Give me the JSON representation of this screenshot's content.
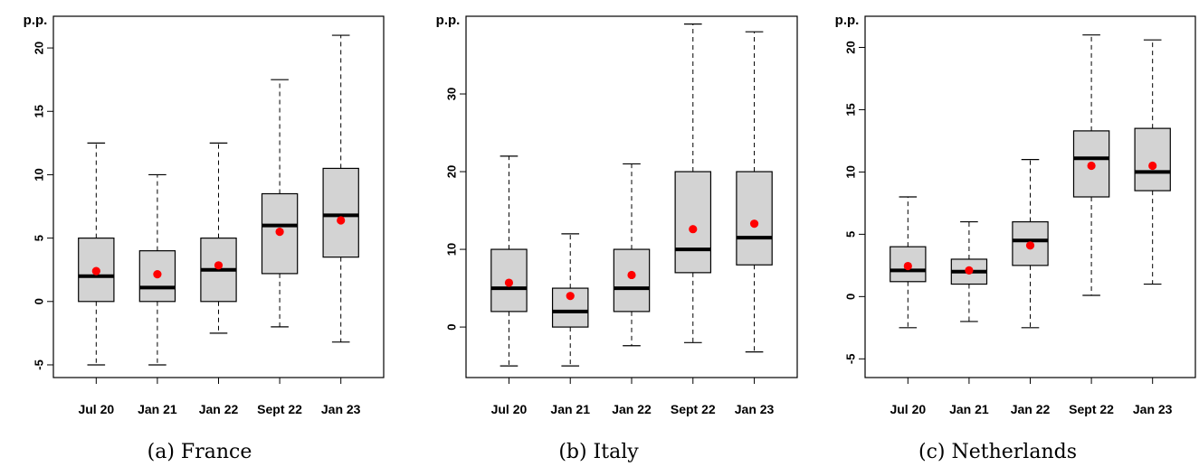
{
  "units_label": "p.p.",
  "captions": [
    "(a) France",
    "(b) Italy",
    "(c) Netherlands"
  ],
  "colors": {
    "box_fill": "#d3d3d3",
    "median": "#000000",
    "mean_point": "#ff0000",
    "frame": "#000000"
  },
  "chart_data": [
    {
      "type": "boxplot",
      "ylabel": "p.p.",
      "categories": [
        "Jul 20",
        "Jan 21",
        "Jan 22",
        "Sept 22",
        "Jan 23"
      ],
      "yticks": [
        -5,
        0,
        5,
        10,
        15,
        20
      ],
      "ylim": [
        -6,
        22.5
      ],
      "boxes": [
        {
          "whisker_low": -5,
          "q1": 0,
          "median": 2,
          "q3": 5,
          "whisker_high": 12.5,
          "mean": 2.4
        },
        {
          "whisker_low": -5,
          "q1": 0,
          "median": 1.1,
          "q3": 4,
          "whisker_high": 10,
          "mean": 2.15
        },
        {
          "whisker_low": -2.5,
          "q1": 0,
          "median": 2.5,
          "q3": 5,
          "whisker_high": 12.5,
          "mean": 2.85
        },
        {
          "whisker_low": -2,
          "q1": 2.2,
          "median": 6,
          "q3": 8.5,
          "whisker_high": 17.5,
          "mean": 5.5
        },
        {
          "whisker_low": -3.2,
          "q1": 3.5,
          "median": 6.8,
          "q3": 10.5,
          "whisker_high": 21,
          "mean": 6.4
        }
      ],
      "grid": false,
      "legend": "none"
    },
    {
      "type": "boxplot",
      "ylabel": "p.p.",
      "categories": [
        "Jul 20",
        "Jan 21",
        "Jan 22",
        "Sept 22",
        "Jan 23"
      ],
      "yticks": [
        0,
        10,
        20,
        30
      ],
      "ylim": [
        -6.5,
        40
      ],
      "boxes": [
        {
          "whisker_low": -5,
          "q1": 2,
          "median": 5,
          "q3": 10,
          "whisker_high": 22,
          "mean": 5.7
        },
        {
          "whisker_low": -5,
          "q1": 0,
          "median": 2,
          "q3": 5,
          "whisker_high": 12,
          "mean": 4
        },
        {
          "whisker_low": -2.4,
          "q1": 2,
          "median": 5,
          "q3": 10,
          "whisker_high": 21,
          "mean": 6.7
        },
        {
          "whisker_low": -2,
          "q1": 7,
          "median": 10,
          "q3": 20,
          "whisker_high": 39,
          "mean": 12.6
        },
        {
          "whisker_low": -3.2,
          "q1": 8,
          "median": 11.5,
          "q3": 20,
          "whisker_high": 38,
          "mean": 13.3
        }
      ],
      "grid": false,
      "legend": "none"
    },
    {
      "type": "boxplot",
      "ylabel": "p.p.",
      "categories": [
        "Jul 20",
        "Jan 21",
        "Jan 22",
        "Sept 22",
        "Jan 23"
      ],
      "yticks": [
        -5,
        0,
        5,
        10,
        15,
        20
      ],
      "ylim": [
        -6.5,
        22.5
      ],
      "boxes": [
        {
          "whisker_low": -2.5,
          "q1": 1.2,
          "median": 2.1,
          "q3": 4,
          "whisker_high": 8,
          "mean": 2.45
        },
        {
          "whisker_low": -2,
          "q1": 1,
          "median": 2,
          "q3": 3,
          "whisker_high": 6,
          "mean": 2.1
        },
        {
          "whisker_low": -2.5,
          "q1": 2.5,
          "median": 4.5,
          "q3": 6,
          "whisker_high": 11,
          "mean": 4.1
        },
        {
          "whisker_low": 0.1,
          "q1": 8,
          "median": 11.1,
          "q3": 13.3,
          "whisker_high": 21,
          "mean": 10.5
        },
        {
          "whisker_low": 1,
          "q1": 8.5,
          "median": 10,
          "q3": 13.5,
          "whisker_high": 20.6,
          "mean": 10.5
        }
      ],
      "grid": false,
      "legend": "none"
    }
  ]
}
